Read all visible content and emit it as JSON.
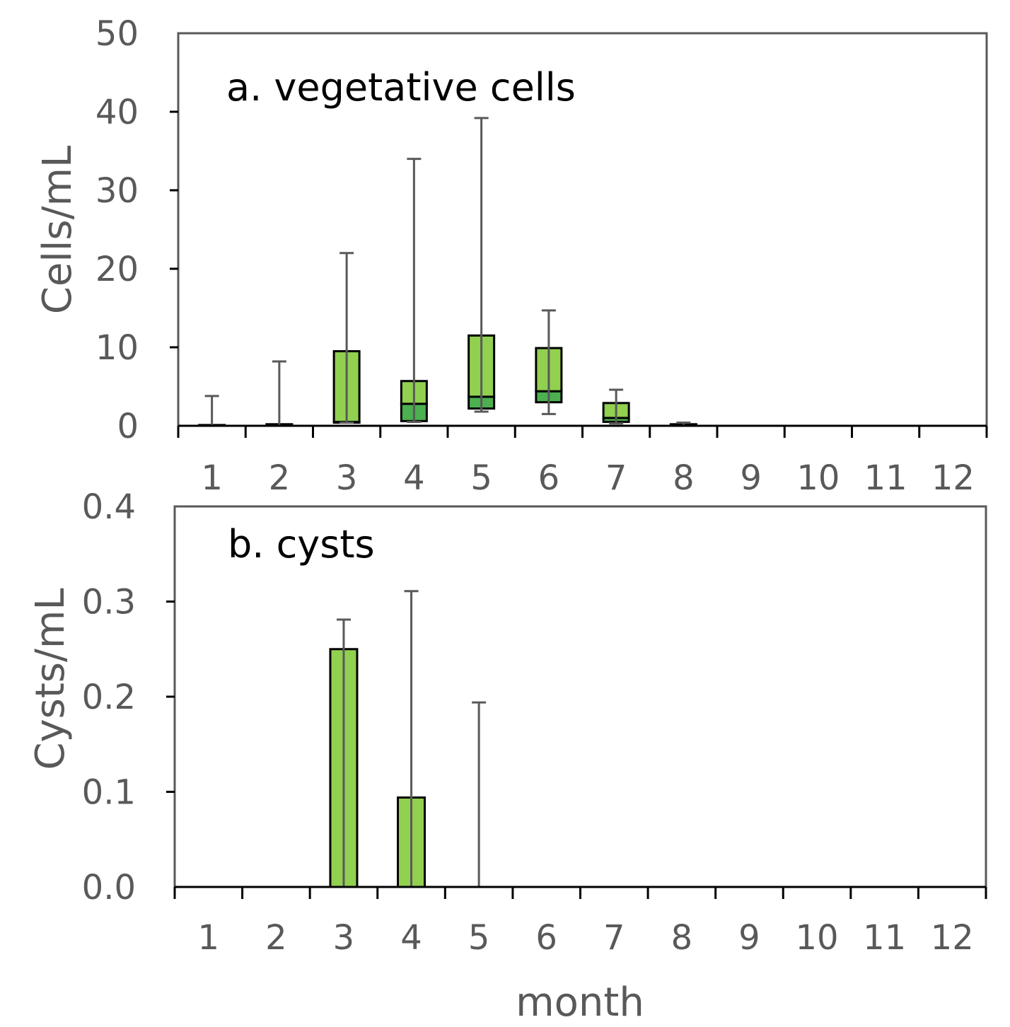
{
  "chart_data": [
    {
      "type": "box",
      "title": "a. vegetative cells",
      "xlabel": "",
      "ylabel": "Cells/mL",
      "ylim": [
        0,
        50
      ],
      "yticks": [
        "0",
        "10",
        "20",
        "30",
        "40",
        "50"
      ],
      "categories": [
        "1",
        "2",
        "3",
        "4",
        "5",
        "6",
        "7",
        "8",
        "9",
        "10",
        "11",
        "12"
      ],
      "boxes": [
        {
          "month": "1",
          "whisker_low": 0,
          "q1": 0,
          "median": 0,
          "q3": 0.1,
          "whisker_high": 3.8
        },
        {
          "month": "2",
          "whisker_low": 0,
          "q1": 0,
          "median": 0.1,
          "q3": 0.2,
          "whisker_high": 8.2
        },
        {
          "month": "3",
          "whisker_low": 0.4,
          "q1": 0.4,
          "median": 0.5,
          "q3": 9.5,
          "whisker_high": 22
        },
        {
          "month": "4",
          "whisker_low": 0.5,
          "q1": 0.6,
          "median": 2.8,
          "q3": 5.7,
          "whisker_high": 34
        },
        {
          "month": "5",
          "whisker_low": 1.8,
          "q1": 2.2,
          "median": 3.7,
          "q3": 11.5,
          "whisker_high": 39.2
        },
        {
          "month": "6",
          "whisker_low": 1.5,
          "q1": 3.0,
          "median": 4.4,
          "q3": 9.9,
          "whisker_high": 14.7
        },
        {
          "month": "7",
          "whisker_low": 0.3,
          "q1": 0.5,
          "median": 1.0,
          "q3": 2.9,
          "whisker_high": 4.6
        },
        {
          "month": "8",
          "whisker_low": 0,
          "q1": 0,
          "median": 0.1,
          "q3": 0.2,
          "whisker_high": 0.4
        },
        {
          "month": "9",
          "whisker_low": 0,
          "q1": 0,
          "median": 0,
          "q3": 0,
          "whisker_high": 0
        },
        {
          "month": "10",
          "whisker_low": 0,
          "q1": 0,
          "median": 0,
          "q3": 0,
          "whisker_high": 0
        },
        {
          "month": "11",
          "whisker_low": 0,
          "q1": 0,
          "median": 0,
          "q3": 0,
          "whisker_high": 0
        },
        {
          "month": "12",
          "whisker_low": 0,
          "q1": 0,
          "median": 0,
          "q3": 0,
          "whisker_high": 0
        }
      ],
      "colors": {
        "upper_box": "#92d050",
        "lower_box": "#4caf50",
        "outline": "#000000",
        "whisker": "#595959"
      }
    },
    {
      "type": "bar",
      "title": "b. cysts",
      "xlabel": "month",
      "ylabel": "Cysts/mL",
      "ylim": [
        0,
        0.4
      ],
      "yticks": [
        "0.0",
        "0.1",
        "0.2",
        "0.3",
        "0.4"
      ],
      "categories": [
        "1",
        "2",
        "3",
        "4",
        "5",
        "6",
        "7",
        "8",
        "9",
        "10",
        "11",
        "12"
      ],
      "values": [
        0,
        0,
        0.25,
        0.094,
        0,
        0,
        0,
        0,
        0,
        0,
        0,
        0
      ],
      "error_high": [
        0,
        0,
        0.281,
        0.311,
        0.194,
        0,
        0,
        0,
        0,
        0,
        0,
        0
      ],
      "colors": {
        "bar": "#92d050",
        "outline": "#000000",
        "whisker": "#595959"
      }
    }
  ]
}
